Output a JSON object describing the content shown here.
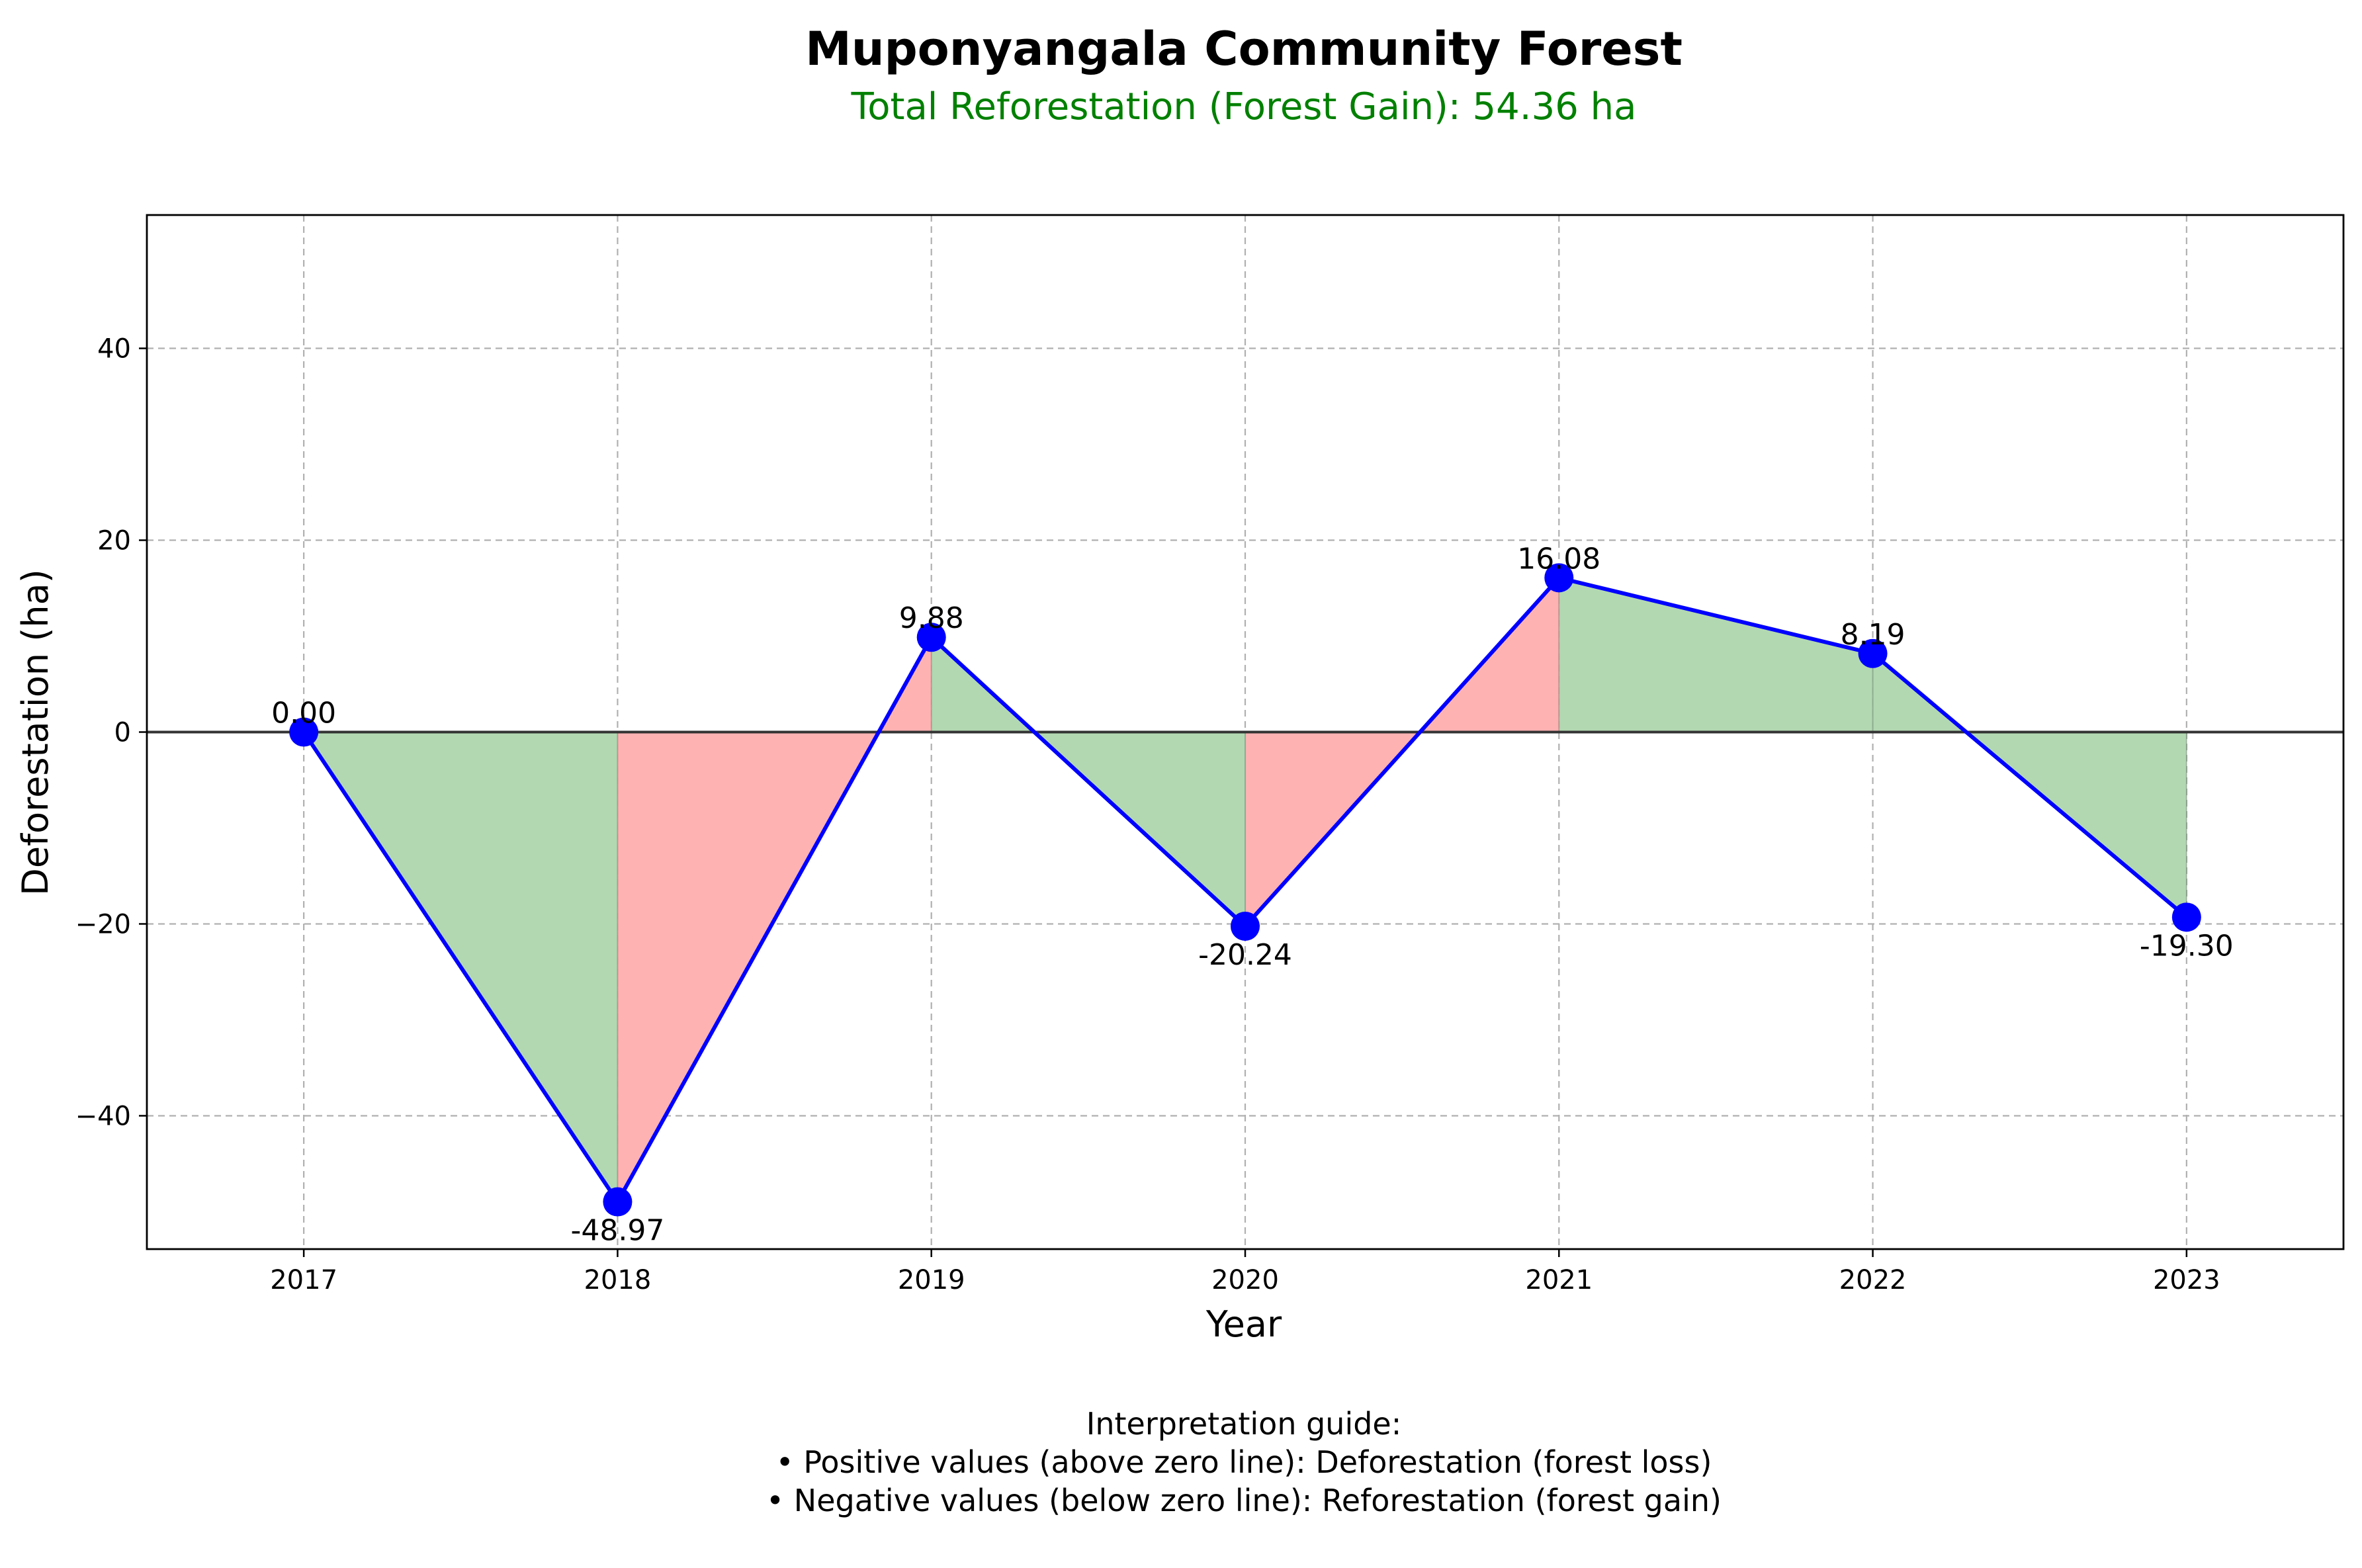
{
  "chart_data": {
    "type": "line",
    "title": "Muponyangala Community Forest",
    "subtitle": "Total Reforestation (Forest Gain): 54.36 ha",
    "xlabel": "Year",
    "ylabel": "Deforestation (ha)",
    "x": [
      2017,
      2018,
      2019,
      2020,
      2021,
      2022,
      2023
    ],
    "categories": [
      "2017",
      "2018",
      "2019",
      "2020",
      "2021",
      "2022",
      "2023"
    ],
    "series": [
      {
        "values": [
          0.0,
          -48.97,
          9.88,
          -20.24,
          16.08,
          8.19,
          -19.3
        ]
      }
    ],
    "data_labels": [
      "0.00",
      "-48.97",
      "9.88",
      "-20.24",
      "16.08",
      "8.19",
      "-19.30"
    ],
    "xlim": [
      2016.5,
      2023.5
    ],
    "ylim": [
      -53.9,
      53.9
    ],
    "yticks": [
      -40,
      -20,
      0,
      20,
      40
    ],
    "ytick_labels": [
      "−40",
      "−20",
      "0",
      "20",
      "40"
    ],
    "grid": true,
    "zero_line": true,
    "footer_lines": [
      "Interpretation guide:",
      "• Positive values (above zero line): Deforestation (forest loss)",
      "• Negative values (below zero line): Reforestation (forest gain)"
    ],
    "colors": {
      "line": "#0000ff",
      "marker": "#0000ff",
      "gain_fill": "#b2d8b2",
      "loss_fill": "#ffb2b2",
      "subtitle": "#008000",
      "grid": "#b0b0b0",
      "zero_line": "#333333"
    }
  }
}
